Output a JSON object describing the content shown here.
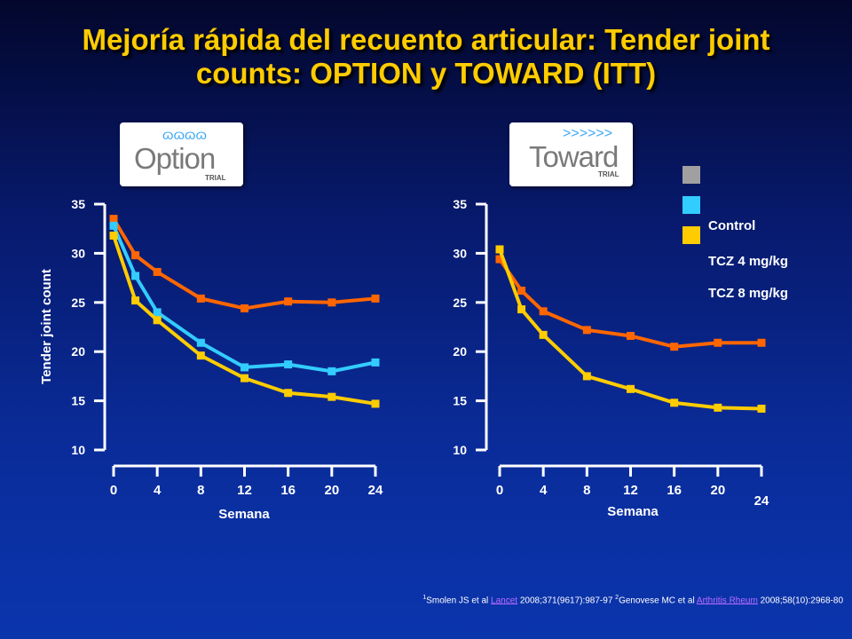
{
  "title": "Mejoría rápida del recuento articular: Tender joint counts: OPTION y TOWARD (ITT)",
  "logos": {
    "option": {
      "word": "Option",
      "trial": "TRIAL",
      "deco": "ɷɷɷɷ"
    },
    "toward": {
      "word": "Toward",
      "trial": "TRIAL",
      "deco": ">>>>>>"
    }
  },
  "colors": {
    "control": "#a0a0a0",
    "tcz4": "#33ccff",
    "tcz8": "#ffcc00",
    "line_tcz8_option": "#ff6600",
    "axis": "#ffffff"
  },
  "legend": {
    "items": [
      {
        "label": "Control",
        "color": "#a0a0a0"
      },
      {
        "label": "TCZ 4 mg/kg",
        "color": "#33ccff"
      },
      {
        "label": "TCZ 8 mg/kg",
        "color": "#ffcc00"
      }
    ]
  },
  "chart_data": [
    {
      "type": "line",
      "panel": "OPTION",
      "xlabel": "Semana",
      "ylabel": "Tender joint count",
      "xlim": [
        0,
        24
      ],
      "ylim": [
        10,
        35
      ],
      "xticks": [
        0,
        4,
        8,
        12,
        16,
        20,
        24
      ],
      "yticks": [
        10,
        15,
        20,
        25,
        30,
        35
      ],
      "series": [
        {
          "color": "#ff6600",
          "x": [
            0,
            2,
            4,
            8,
            12,
            16,
            20,
            24
          ],
          "y": [
            33.5,
            29.8,
            28.1,
            25.4,
            24.4,
            25.1,
            25.0,
            25.4
          ]
        },
        {
          "color": "#33ccff",
          "x": [
            0,
            2,
            4,
            8,
            12,
            16,
            20,
            24
          ],
          "y": [
            32.8,
            27.7,
            24.0,
            20.9,
            18.4,
            18.7,
            18.0,
            18.9
          ]
        },
        {
          "color": "#ffcc00",
          "x": [
            0,
            2,
            4,
            8,
            12,
            16,
            20,
            24
          ],
          "y": [
            31.8,
            25.2,
            23.2,
            19.6,
            17.3,
            15.8,
            15.4,
            14.7
          ]
        }
      ]
    },
    {
      "type": "line",
      "panel": "TOWARD",
      "xlabel": "Semana",
      "ylabel": "",
      "xlim": [
        0,
        24
      ],
      "ylim": [
        10,
        35
      ],
      "xticks": [
        0,
        4,
        8,
        12,
        16,
        20,
        24
      ],
      "yticks": [
        10,
        15,
        20,
        25,
        30,
        35
      ],
      "series": [
        {
          "color": "#ff6600",
          "x": [
            0,
            2,
            4,
            8,
            12,
            16,
            20,
            24
          ],
          "y": [
            29.4,
            26.2,
            24.1,
            22.2,
            21.6,
            20.5,
            20.9,
            20.9
          ]
        },
        {
          "color": "#ffcc00",
          "x": [
            0,
            2,
            4,
            8,
            12,
            16,
            20,
            24
          ],
          "y": [
            30.4,
            24.3,
            21.7,
            17.5,
            16.2,
            14.8,
            14.3,
            14.2
          ]
        }
      ]
    }
  ],
  "footnote": {
    "ref1_sup": "1",
    "ref1_author": "Smolen JS et al ",
    "ref1_journal": "Lancet",
    "ref1_rest": " 2008;371(9617):987-97 ",
    "ref2_sup": "2",
    "ref2_author": "Genovese MC et al ",
    "ref2_journal": "Arthritis Rheum",
    "ref2_rest": " 2008;58(10):2968-80"
  }
}
